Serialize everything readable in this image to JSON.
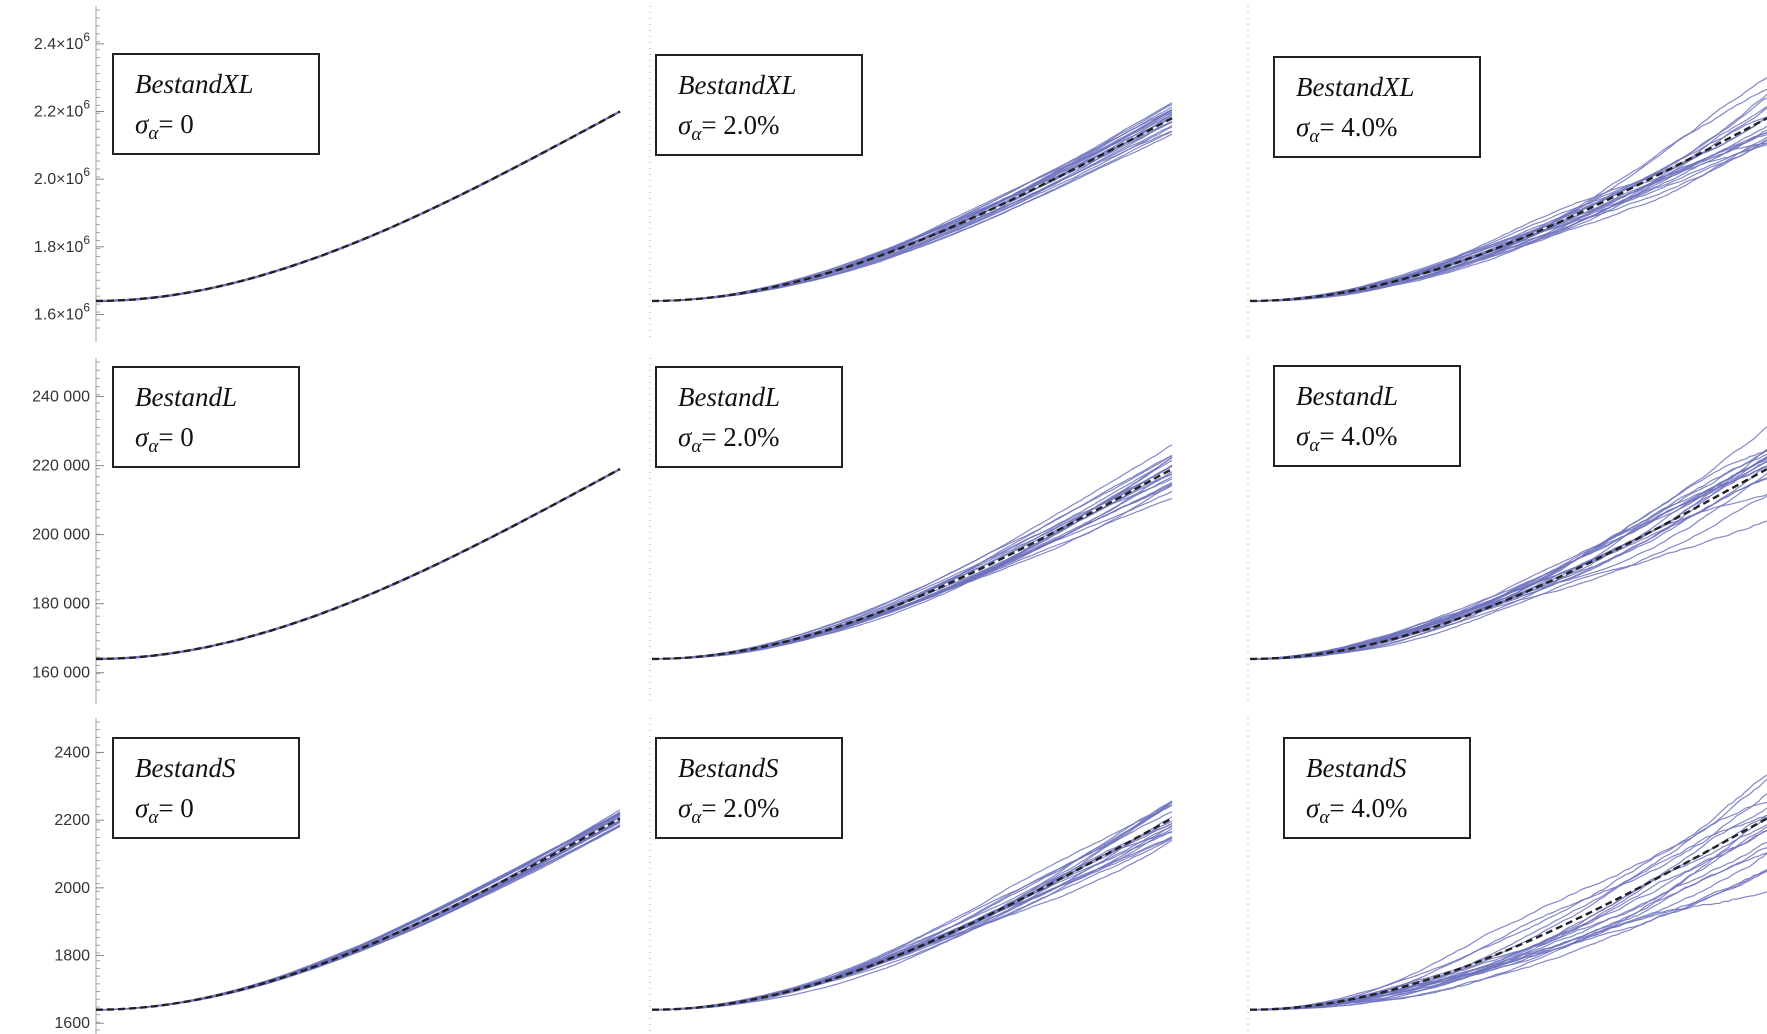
{
  "colors": {
    "simulation": "#6d72bd",
    "mean": "#222222",
    "axis": "#a0a0a0",
    "box_border": "#222222"
  },
  "chart_data": [
    {
      "type": "line",
      "row": "BestandXL",
      "column": "σα = 0",
      "label_name": "BestandXL",
      "label_sigma": "0",
      "y_ticks": [
        {
          "value": 1600000,
          "mantissa": "1.6",
          "base": "×10",
          "exp": "6"
        },
        {
          "value": 1800000,
          "mantissa": "1.8",
          "base": "×10",
          "exp": "6"
        },
        {
          "value": 2000000,
          "mantissa": "2.0",
          "base": "×10",
          "exp": "6"
        },
        {
          "value": 2200000,
          "mantissa": "2.2",
          "base": "×10",
          "exp": "6"
        },
        {
          "value": 2400000,
          "mantissa": "2.4",
          "base": "×10",
          "exp": "6"
        }
      ],
      "ylim": [
        1560000,
        2500000
      ],
      "x": [
        0,
        100
      ],
      "start": 1640000,
      "end": 2200000,
      "spread": 0,
      "n_series": 1
    },
    {
      "type": "line",
      "row": "BestandXL",
      "column": "σα = 2.0%",
      "label_name": "BestandXL",
      "label_sigma": "2.0%",
      "y_ticks": [],
      "ylim": [
        1560000,
        2500000
      ],
      "x": [
        0,
        100
      ],
      "start": 1640000,
      "end": 2180000,
      "spread": 0.09,
      "n_series": 20
    },
    {
      "type": "line",
      "row": "BestandXL",
      "column": "σα = 4.0%",
      "label_name": "BestandXL",
      "label_sigma": "4.0%",
      "y_ticks": [],
      "ylim": [
        1560000,
        2500000
      ],
      "x": [
        0,
        100
      ],
      "start": 1640000,
      "end": 2180000,
      "spread": 0.18,
      "n_series": 20
    },
    {
      "type": "line",
      "row": "BestandL",
      "column": "σα = 0",
      "label_name": "BestandL",
      "label_sigma": "0",
      "y_ticks": [
        {
          "value": 160000,
          "label": "160 000"
        },
        {
          "value": 180000,
          "label": "180 000"
        },
        {
          "value": 200000,
          "label": "200 000"
        },
        {
          "value": 220000,
          "label": "220 000"
        },
        {
          "value": 240000,
          "label": "240 000"
        }
      ],
      "ylim": [
        155000,
        250000
      ],
      "x": [
        0,
        100
      ],
      "start": 164000,
      "end": 219000,
      "spread": 0,
      "n_series": 1
    },
    {
      "type": "line",
      "row": "BestandL",
      "column": "σα = 2.0%",
      "label_name": "BestandL",
      "label_sigma": "2.0%",
      "y_ticks": [],
      "ylim": [
        155000,
        250000
      ],
      "x": [
        0,
        100
      ],
      "start": 164000,
      "end": 219000,
      "spread": 0.11,
      "n_series": 20
    },
    {
      "type": "line",
      "row": "BestandL",
      "column": "σα = 4.0%",
      "label_name": "BestandL",
      "label_sigma": "4.0%",
      "y_ticks": [],
      "ylim": [
        155000,
        250000
      ],
      "x": [
        0,
        100
      ],
      "start": 164000,
      "end": 219000,
      "spread": 0.2,
      "n_series": 20
    },
    {
      "type": "line",
      "row": "BestandS",
      "column": "σα = 0",
      "label_name": "BestandS",
      "label_sigma": "0",
      "y_ticks": [
        {
          "value": 1600,
          "label": "1600"
        },
        {
          "value": 1800,
          "label": "1800"
        },
        {
          "value": 2000,
          "label": "2000"
        },
        {
          "value": 2200,
          "label": "2200"
        },
        {
          "value": 2400,
          "label": "2400"
        }
      ],
      "ylim": [
        1580,
        2490
      ],
      "x": [
        0,
        100
      ],
      "start": 1640,
      "end": 2205,
      "spread": 0.04,
      "n_series": 20
    },
    {
      "type": "line",
      "row": "BestandS",
      "column": "σα = 2.0%",
      "label_name": "BestandS",
      "label_sigma": "2.0%",
      "y_ticks": [],
      "ylim": [
        1580,
        2490
      ],
      "x": [
        0,
        100
      ],
      "start": 1640,
      "end": 2205,
      "spread": 0.13,
      "n_series": 20
    },
    {
      "type": "line",
      "row": "BestandS",
      "column": "σα = 4.0%",
      "label_name": "BestandS",
      "label_sigma": "4.0%",
      "y_ticks": [],
      "ylim": [
        1580,
        2490
      ],
      "x": [
        0,
        100
      ],
      "start": 1640,
      "end": 2205,
      "spread": 0.26,
      "n_series": 20
    }
  ]
}
